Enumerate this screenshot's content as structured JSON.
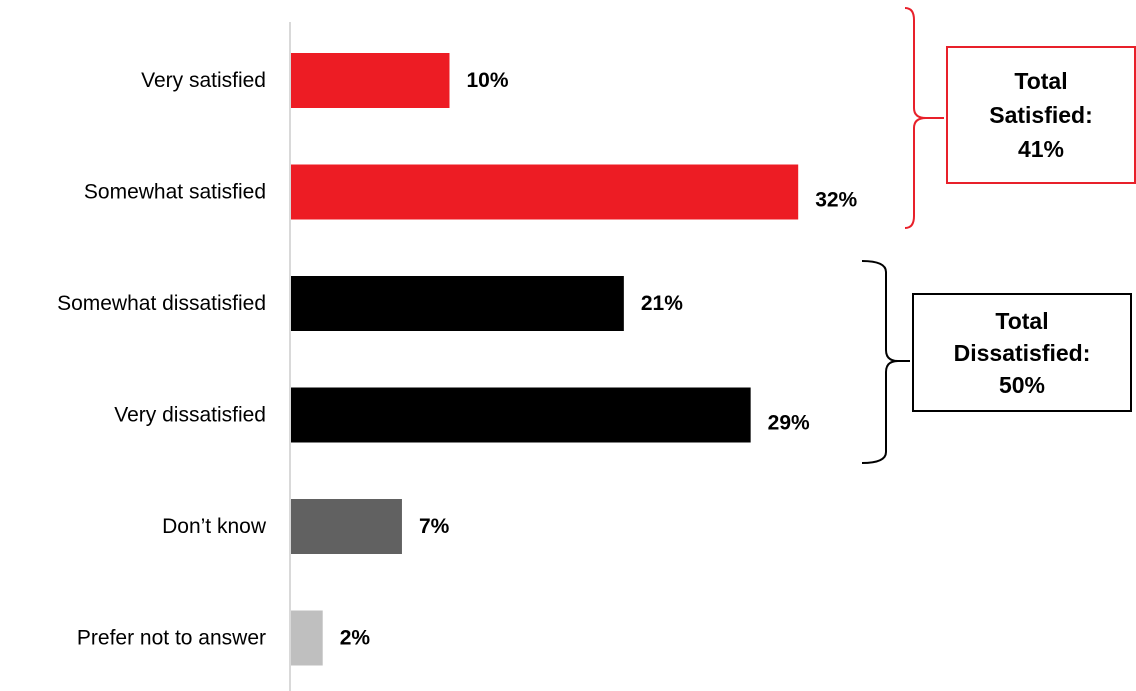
{
  "chart_data": {
    "type": "bar",
    "orientation": "horizontal",
    "categories": [
      "Very satisfied",
      "Somewhat satisfied",
      "Somewhat dissatisfied",
      "Very dissatisfied",
      "Don’t know",
      "Prefer not to answer"
    ],
    "values": [
      10,
      32,
      21,
      29,
      7,
      2
    ],
    "value_labels": [
      "10%",
      "32%",
      "21%",
      "29%",
      "7%",
      "2%"
    ],
    "bar_colors": [
      "#ed1c24",
      "#ed1c24",
      "#000000",
      "#000000",
      "#616161",
      "#bfbfbf"
    ],
    "xlim": [
      0,
      60
    ],
    "grid": false,
    "title": "",
    "xlabel": "",
    "ylabel": ""
  },
  "annotations": [
    {
      "line1": "Total",
      "line2": "Satisfied:",
      "line3": "41%",
      "color": "#e8202a",
      "brackets": [
        "Very satisfied",
        "Somewhat satisfied"
      ]
    },
    {
      "line1": "Total",
      "line2": "Dissatisfied:",
      "line3": "50%",
      "color": "#000000",
      "brackets": [
        "Somewhat dissatisfied",
        "Very dissatisfied"
      ]
    }
  ]
}
